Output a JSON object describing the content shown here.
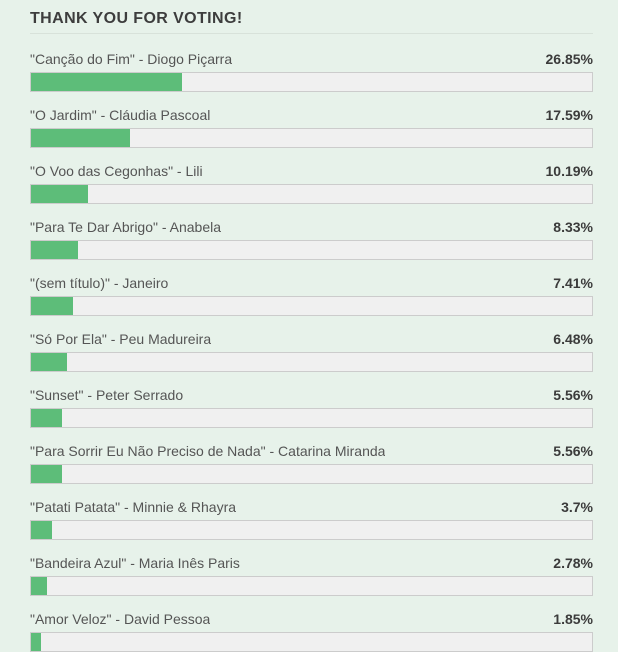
{
  "header": {
    "title": "THANK YOU FOR VOTING!"
  },
  "poll": {
    "items": [
      {
        "label": "\"Canção do Fim\" - Diogo Piçarra",
        "percent": "26.85%",
        "value": 26.85
      },
      {
        "label": "\"O Jardim\" - Cláudia Pascoal",
        "percent": "17.59%",
        "value": 17.59
      },
      {
        "label": "\"O Voo das Cegonhas\" - Lili",
        "percent": "10.19%",
        "value": 10.19
      },
      {
        "label": "\"Para Te Dar Abrigo\" - Anabela",
        "percent": "8.33%",
        "value": 8.33
      },
      {
        "label": "\"(sem título)\" - Janeiro",
        "percent": "7.41%",
        "value": 7.41
      },
      {
        "label": "\"Só Por Ela\" - Peu Madureira",
        "percent": "6.48%",
        "value": 6.48
      },
      {
        "label": "\"Sunset\" - Peter Serrado",
        "percent": "5.56%",
        "value": 5.56
      },
      {
        "label": "\"Para Sorrir Eu Não Preciso de Nada\" - Catarina Miranda",
        "percent": "5.56%",
        "value": 5.56
      },
      {
        "label": "\"Patati Patata\" - Minnie & Rhayra",
        "percent": "3.7%",
        "value": 3.7
      },
      {
        "label": "\"Bandeira Azul\" - Maria Inês Paris",
        "percent": "2.78%",
        "value": 2.78
      },
      {
        "label": "\"Amor Veloz\" - David Pessoa",
        "percent": "1.85%",
        "value": 1.85
      }
    ]
  },
  "colors": {
    "background": "#e7f2ea",
    "bar_fill": "#5dbd79",
    "bar_track": "#f0f0f0",
    "bar_border": "#cccccc",
    "divider": "#d8e2da",
    "title_text": "#3d3d3d",
    "label_text": "#555555",
    "percent_text": "#3b3b3b"
  },
  "chart_data": {
    "type": "bar",
    "orientation": "horizontal",
    "title": "THANK YOU FOR VOTING!",
    "categories": [
      "\"Canção do Fim\" - Diogo Piçarra",
      "\"O Jardim\" - Cláudia Pascoal",
      "\"O Voo das Cegonhas\" - Lili",
      "\"Para Te Dar Abrigo\" - Anabela",
      "\"(sem título)\" - Janeiro",
      "\"Só Por Ela\" - Peu Madureira",
      "\"Sunset\" - Peter Serrado",
      "\"Para Sorrir Eu Não Preciso de Nada\" - Catarina Miranda",
      "\"Patati Patata\" - Minnie & Rhayra",
      "\"Bandeira Azul\" - Maria Inês Paris",
      "\"Amor Veloz\" - David Pessoa"
    ],
    "values": [
      26.85,
      17.59,
      10.19,
      8.33,
      7.41,
      6.48,
      5.56,
      5.56,
      3.7,
      2.78,
      1.85
    ],
    "value_unit": "%",
    "xlabel": "",
    "ylabel": "",
    "xlim": [
      0,
      100
    ],
    "grid": false,
    "legend": false,
    "data_labels": "right-aligned percentage above each bar",
    "bar_color": "#5dbd79"
  }
}
